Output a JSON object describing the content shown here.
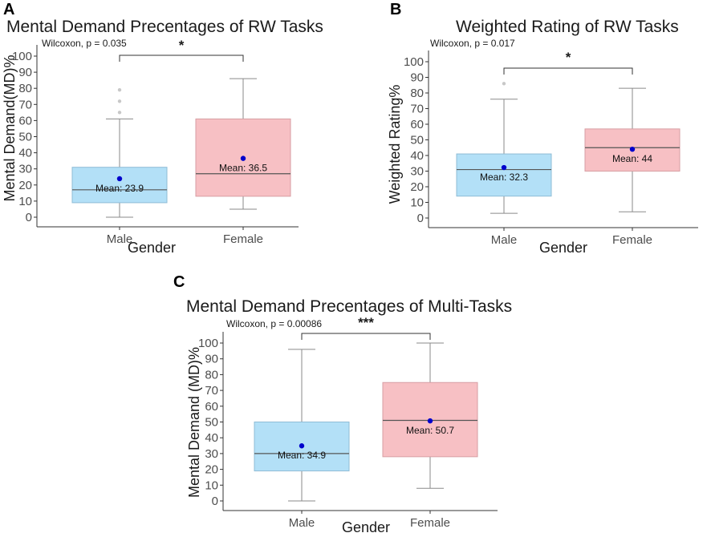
{
  "colors": {
    "male_fill": "#b3e0f7",
    "male_stroke": "#8fbcd6",
    "female_fill": "#f7c0c4",
    "female_stroke": "#d79ea3",
    "mean_dot": "#0000cc",
    "axis": "#333333",
    "whisker": "#8a8a8a",
    "outlier": "#c8c8c8"
  },
  "chart_data": [
    {
      "panel": "A",
      "type": "box",
      "title": "Mental Demand Precentages of RW Tasks",
      "xlabel": "Gender",
      "ylabel": "Mental Demand(MD)%",
      "ylim": [
        0,
        100
      ],
      "yticks": [
        0,
        10,
        20,
        30,
        40,
        50,
        60,
        70,
        80,
        90,
        100
      ],
      "categories": [
        "Male",
        "Female"
      ],
      "test": "Wilcoxon, p = 0.035",
      "significance": "*",
      "boxes": [
        {
          "group": "Male",
          "whisker_low": 0,
          "q1": 9,
          "median": 17,
          "q3": 31,
          "whisker_high": 61,
          "mean": 23.9,
          "mean_label": "Mean: 23.9",
          "outliers": [
            65,
            72,
            79
          ]
        },
        {
          "group": "Female",
          "whisker_low": 5,
          "q1": 13,
          "median": 27,
          "q3": 61,
          "whisker_high": 86,
          "mean": 36.5,
          "mean_label": "Mean: 36.5",
          "outliers": []
        }
      ]
    },
    {
      "panel": "B",
      "type": "box",
      "title": "Weighted Rating of RW Tasks",
      "xlabel": "Gender",
      "ylabel": "Weighted Rating%",
      "ylim": [
        0,
        100
      ],
      "yticks": [
        0,
        10,
        20,
        30,
        40,
        50,
        60,
        70,
        80,
        90,
        100
      ],
      "categories": [
        "Male",
        "Female"
      ],
      "test": "Wilcoxon, p = 0.017",
      "significance": "*",
      "boxes": [
        {
          "group": "Male",
          "whisker_low": 3,
          "q1": 14,
          "median": 31,
          "q3": 41,
          "whisker_high": 76,
          "mean": 32.3,
          "mean_label": "Mean: 32.3",
          "outliers": [
            86
          ]
        },
        {
          "group": "Female",
          "whisker_low": 4,
          "q1": 30,
          "median": 45,
          "q3": 57,
          "whisker_high": 83,
          "mean": 44,
          "mean_label": "Mean: 44",
          "outliers": []
        }
      ]
    },
    {
      "panel": "C",
      "type": "box",
      "title": "Mental Demand Precentages of Multi-Tasks",
      "xlabel": "Gender",
      "ylabel": "Mental Demand (MD)%",
      "ylim": [
        0,
        100
      ],
      "yticks": [
        0,
        10,
        20,
        30,
        40,
        50,
        60,
        70,
        80,
        90,
        100
      ],
      "categories": [
        "Male",
        "Female"
      ],
      "test": "Wilcoxon, p = 0.00086",
      "significance": "***",
      "boxes": [
        {
          "group": "Male",
          "whisker_low": 0,
          "q1": 19,
          "median": 30,
          "q3": 50,
          "whisker_high": 96,
          "mean": 34.9,
          "mean_label": "Mean: 34.9",
          "outliers": []
        },
        {
          "group": "Female",
          "whisker_low": 8,
          "q1": 28,
          "median": 51,
          "q3": 75,
          "whisker_high": 100,
          "mean": 50.7,
          "mean_label": "Mean: 50.7",
          "outliers": []
        }
      ]
    }
  ]
}
